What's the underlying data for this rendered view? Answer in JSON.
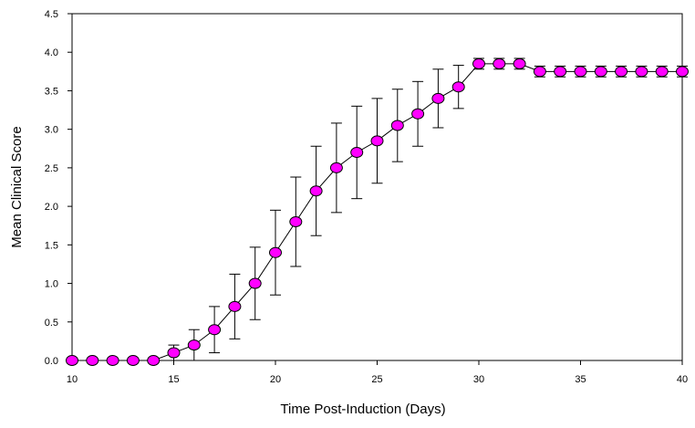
{
  "chart_data": {
    "type": "line",
    "title": "",
    "xlabel": "Time Post-Induction (Days)",
    "ylabel": "Mean Clinical Score",
    "xlim": [
      10,
      40
    ],
    "ylim": [
      0,
      4.5
    ],
    "grid": false,
    "x_ticks": [
      10,
      15,
      20,
      25,
      30,
      35,
      40
    ],
    "x_tick_labels": [
      "10",
      "15",
      "20",
      "25",
      "30",
      "35",
      "40"
    ],
    "y_ticks": [
      0,
      0.5,
      1,
      1.5,
      2,
      2.5,
      3,
      3.5,
      4,
      4.5
    ],
    "y_tick_labels": [
      "0.0",
      "0.5",
      "1.0",
      "1.5",
      "2.0",
      "2.5",
      "3.0",
      "3.5",
      "4.0",
      "4.5"
    ],
    "marker_color": "#ff00ff",
    "line_color": "#000000",
    "series": [
      {
        "name": "Mean Clinical Score",
        "x": [
          10,
          11,
          12,
          13,
          14,
          15,
          16,
          17,
          18,
          19,
          20,
          21,
          22,
          23,
          24,
          25,
          26,
          27,
          28,
          29,
          30,
          31,
          32,
          33,
          34,
          35,
          36,
          37,
          38,
          39,
          40
        ],
        "y": [
          0,
          0,
          0,
          0,
          0,
          0.1,
          0.2,
          0.4,
          0.7,
          1.0,
          1.4,
          1.8,
          2.2,
          2.5,
          2.7,
          2.85,
          3.05,
          3.2,
          3.4,
          3.55,
          3.85,
          3.85,
          3.85,
          3.75,
          3.75,
          3.75,
          3.75,
          3.75,
          3.75,
          3.75,
          3.75
        ],
        "error": [
          0,
          0,
          0,
          0,
          0,
          0.1,
          0.2,
          0.3,
          0.42,
          0.47,
          0.55,
          0.58,
          0.58,
          0.58,
          0.6,
          0.55,
          0.47,
          0.42,
          0.38,
          0.28,
          0.07,
          0.07,
          0.07,
          0.07,
          0.07,
          0.07,
          0.07,
          0.07,
          0.07,
          0.07,
          0.07
        ]
      }
    ]
  }
}
